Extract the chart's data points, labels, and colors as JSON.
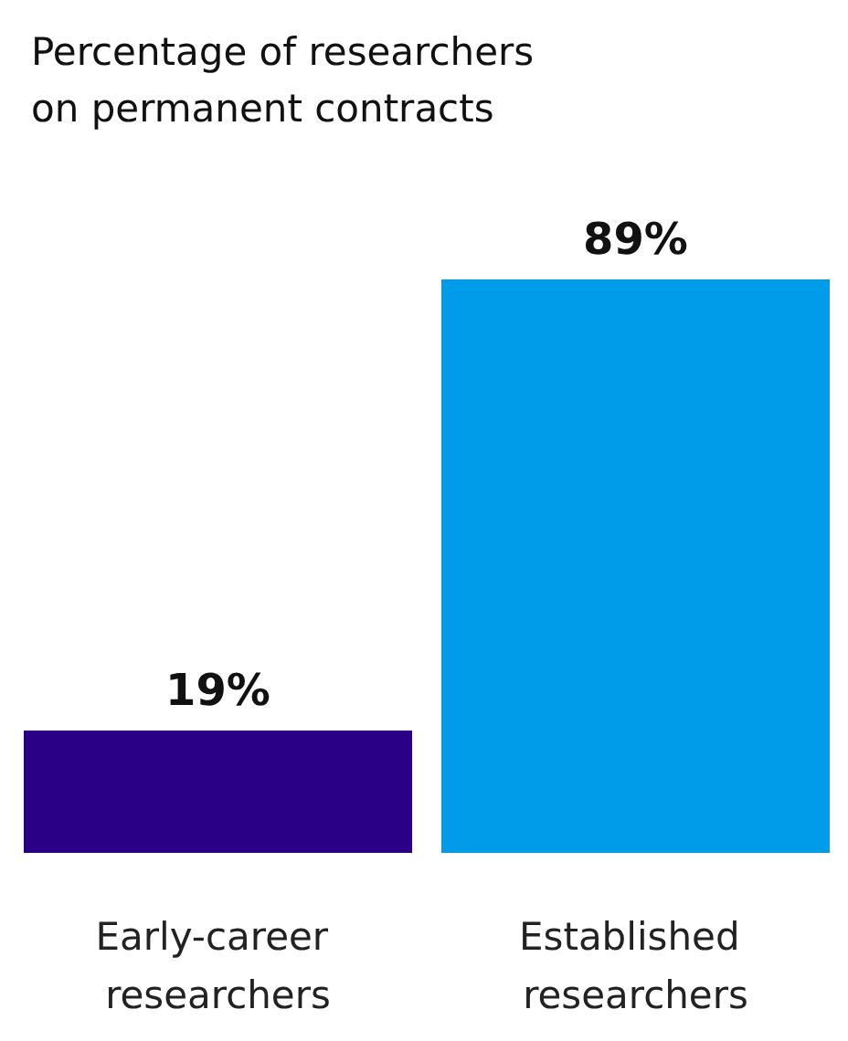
{
  "chart_data": {
    "type": "bar",
    "title": "Percentage of researchers\non permanent contracts",
    "categories": [
      "Early-career researchers",
      "Established researchers"
    ],
    "values": [
      19,
      89
    ],
    "colors": [
      "#2a0087",
      "#009be9"
    ],
    "value_labels": [
      "19%",
      "89%"
    ],
    "tick_labels": "x"
  }
}
